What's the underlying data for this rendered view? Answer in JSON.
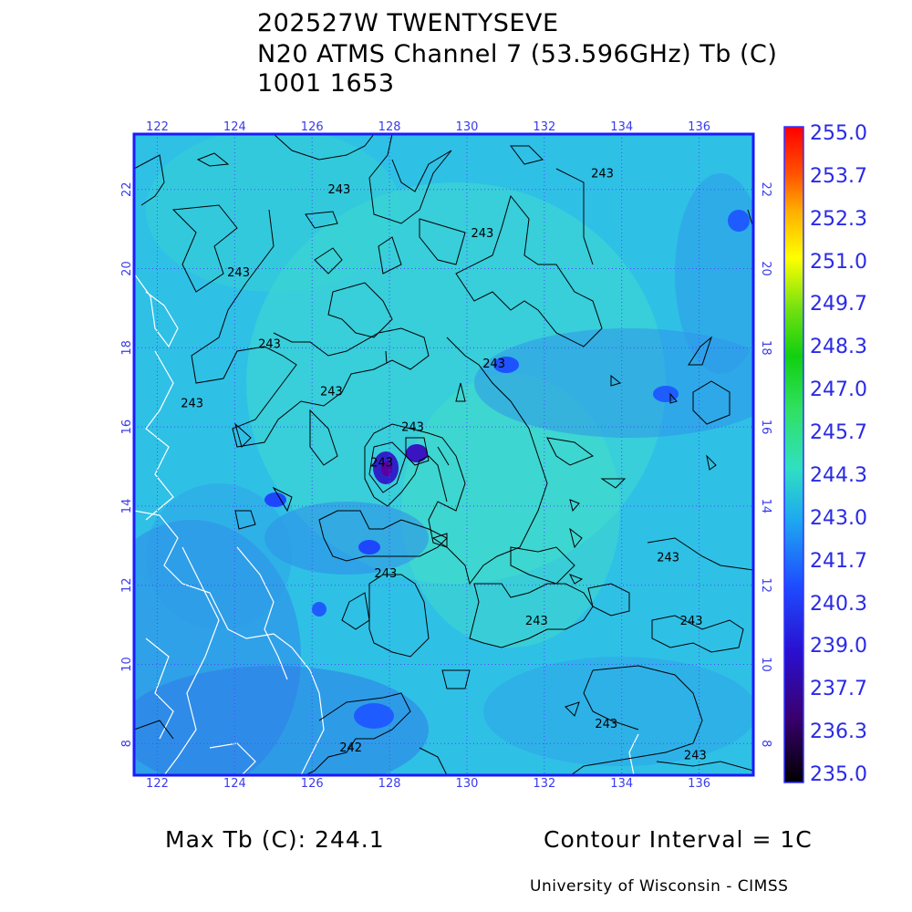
{
  "header": {
    "line1": "202527W TWENTYSEVE",
    "line2": "N20 ATMS Channel 7 (53.596GHz) Tb (C)",
    "line3": "1001 1653"
  },
  "map": {
    "lon_ticks": [
      "122",
      "124",
      "126",
      "128",
      "130",
      "132",
      "134",
      "136"
    ],
    "lat_ticks": [
      "8",
      "10",
      "12",
      "14",
      "16",
      "18",
      "20",
      "22"
    ],
    "lon_range": [
      121.4,
      137.4
    ],
    "lat_range": [
      7.2,
      23.4
    ],
    "frame_color": "#1a1aff",
    "grid_color": "#4a4aff",
    "contour_color": "#000000",
    "coast_color": "#ffffff",
    "contour_labels": [
      {
        "text": "243",
        "lon": 126.7,
        "lat": 21.9
      },
      {
        "text": "243",
        "lon": 130.4,
        "lat": 20.8
      },
      {
        "text": "243",
        "lon": 133.5,
        "lat": 22.3
      },
      {
        "text": "243",
        "lon": 124.1,
        "lat": 19.8
      },
      {
        "text": "243",
        "lon": 124.9,
        "lat": 18.0
      },
      {
        "text": "243",
        "lon": 122.9,
        "lat": 16.5
      },
      {
        "text": "243",
        "lon": 126.5,
        "lat": 16.8
      },
      {
        "text": "243",
        "lon": 130.7,
        "lat": 17.5
      },
      {
        "text": "243",
        "lon": 128.6,
        "lat": 15.9
      },
      {
        "text": "243",
        "lon": 127.8,
        "lat": 15.0
      },
      {
        "text": "243",
        "lon": 127.9,
        "lat": 12.2
      },
      {
        "text": "243",
        "lon": 135.2,
        "lat": 12.6
      },
      {
        "text": "243",
        "lon": 131.8,
        "lat": 11.0
      },
      {
        "text": "243",
        "lon": 135.8,
        "lat": 11.0
      },
      {
        "text": "243",
        "lon": 133.6,
        "lat": 8.4
      },
      {
        "text": "242",
        "lon": 127.0,
        "lat": 7.8
      },
      {
        "text": "243",
        "lon": 135.9,
        "lat": 7.6
      }
    ]
  },
  "colorbar": {
    "labels": [
      "255.0",
      "253.7",
      "252.3",
      "251.0",
      "249.7",
      "248.3",
      "247.0",
      "245.7",
      "244.3",
      "243.0",
      "241.7",
      "240.3",
      "239.0",
      "237.7",
      "236.3",
      "235.0"
    ],
    "min": 235.0,
    "max": 255.0
  },
  "footer": {
    "max_tb": "Max Tb (C): 244.1",
    "contour_interval": "Contour Interval = 1C",
    "credit": "University of Wisconsin - CIMSS"
  }
}
